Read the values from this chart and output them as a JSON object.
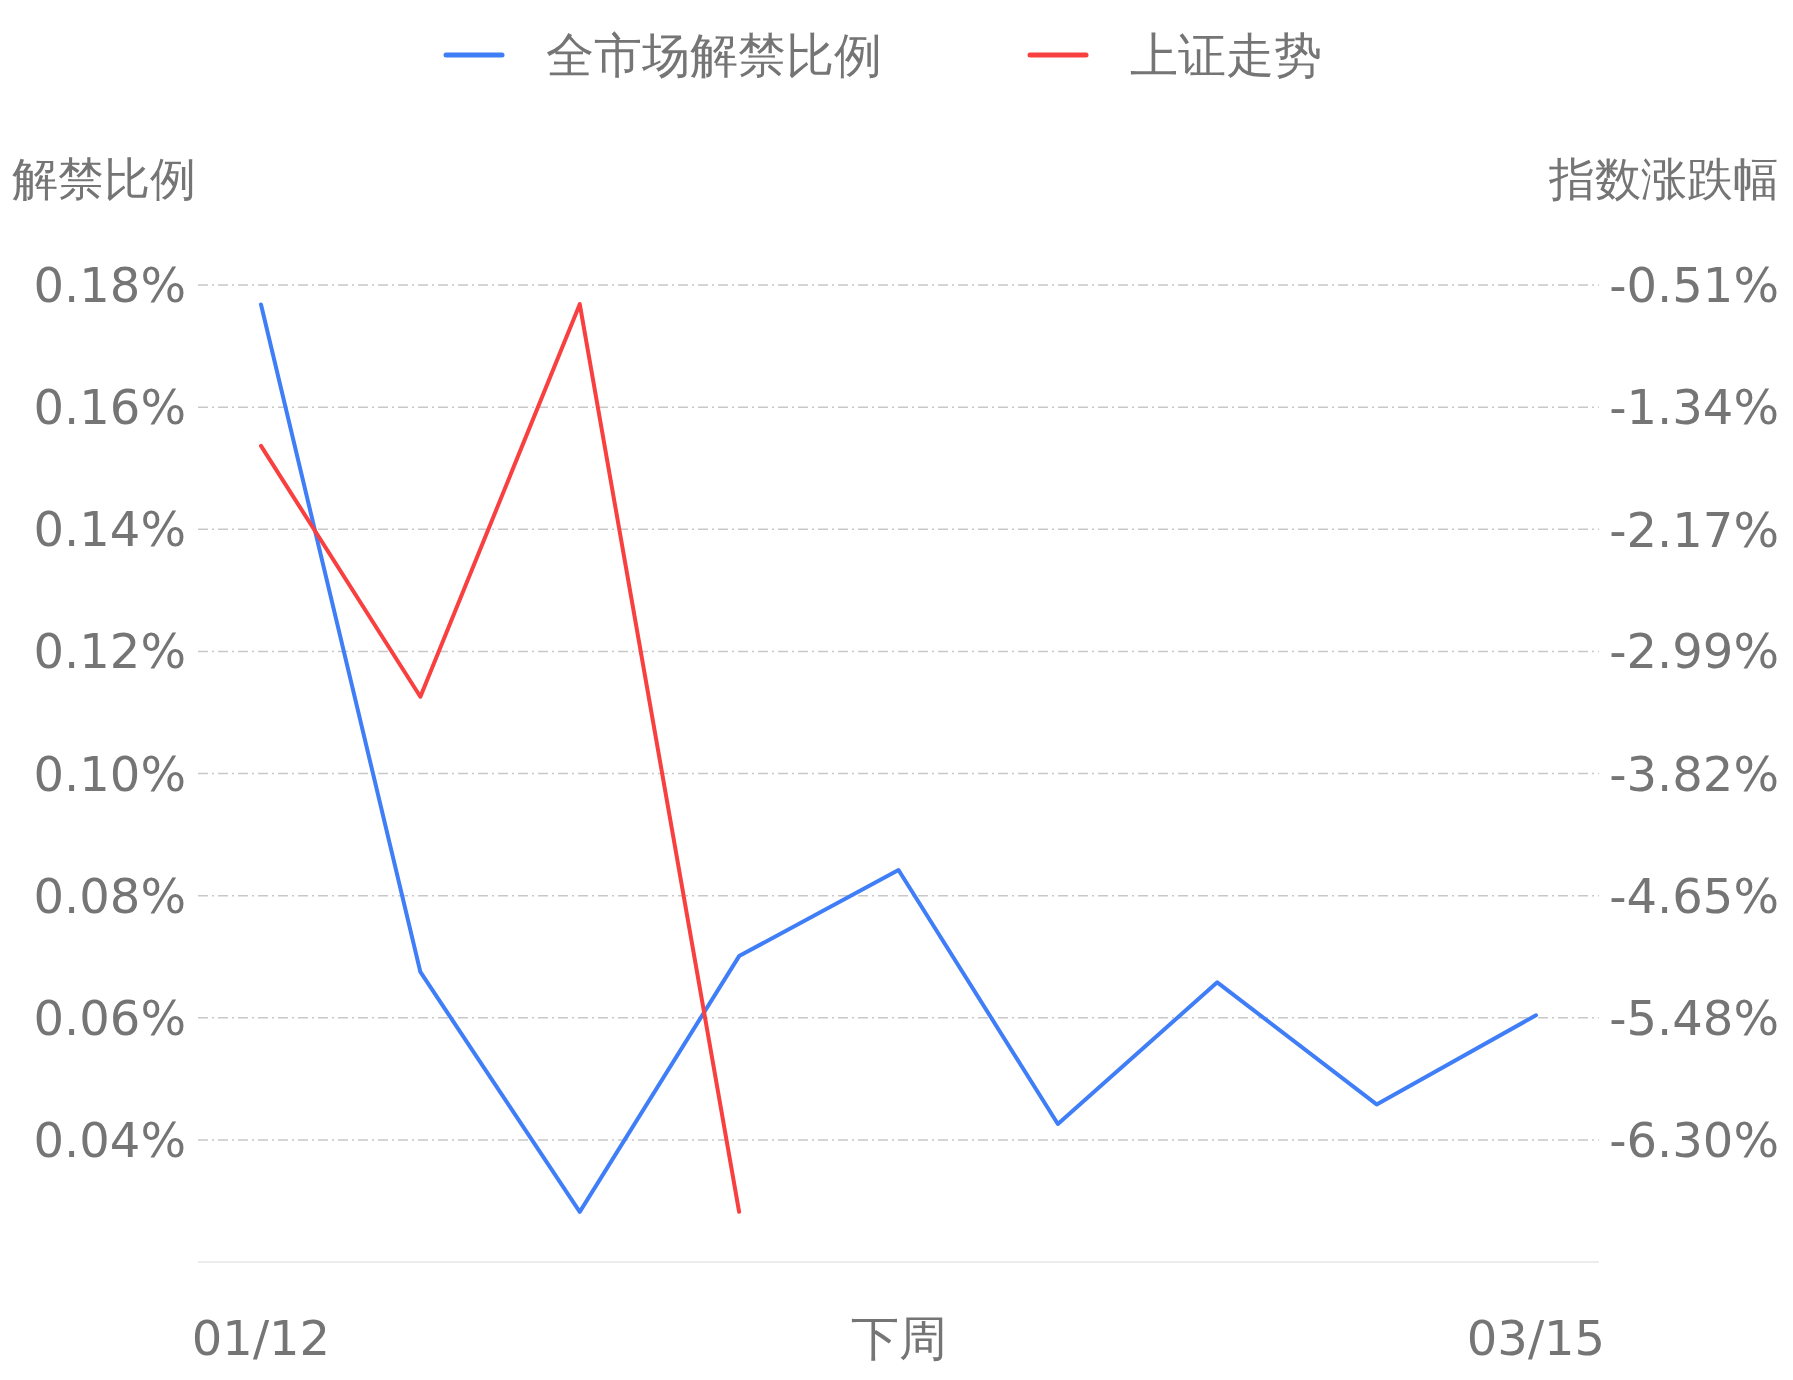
{
  "chart_data": {
    "type": "line",
    "ylabel": "解禁比例",
    "y2label": "指数涨跌幅",
    "categories": [
      "01/12",
      null,
      null,
      null,
      "下周",
      null,
      null,
      null,
      "03/15"
    ],
    "series": [
      {
        "name": "全市场解禁比例",
        "color": "#3f7ef7",
        "values": [
          0.1768,
          0.0675,
          0.0282,
          0.0701,
          0.0842,
          0.0426,
          0.0658,
          0.0458,
          0.0604
        ]
      },
      {
        "name": "上证走势",
        "color": "#f94040",
        "axis": "y2",
        "values": [
          -1.6,
          -3.3,
          -0.64,
          -6.79,
          null,
          null,
          null,
          null,
          null
        ]
      }
    ],
    "ylim": [
      0.02,
      0.18
    ],
    "yticks": [
      {
        "value": 0.04,
        "label": "0.04%"
      },
      {
        "value": 0.06,
        "label": "0.06%"
      },
      {
        "value": 0.08,
        "label": "0.08%"
      },
      {
        "value": 0.1,
        "label": "0.10%"
      },
      {
        "value": 0.12,
        "label": "0.12%"
      },
      {
        "value": 0.14,
        "label": "0.14%"
      },
      {
        "value": 0.16,
        "label": "0.16%"
      },
      {
        "value": 0.18,
        "label": "0.18%"
      }
    ],
    "y2lim": [
      -7.13,
      -0.51
    ],
    "y2ticks": [
      {
        "value": -6.3,
        "label": "-6.30%"
      },
      {
        "value": -5.48,
        "label": "-5.48%"
      },
      {
        "value": -4.65,
        "label": "-4.65%"
      },
      {
        "value": -3.82,
        "label": "-3.82%"
      },
      {
        "value": -2.99,
        "label": "-2.99%"
      },
      {
        "value": -2.17,
        "label": "-2.17%"
      },
      {
        "value": -1.34,
        "label": "-1.34%"
      },
      {
        "value": -0.51,
        "label": "-0.51%"
      }
    ],
    "grid": "y",
    "legend": "top",
    "marker": "none",
    "line_style": "solid"
  }
}
